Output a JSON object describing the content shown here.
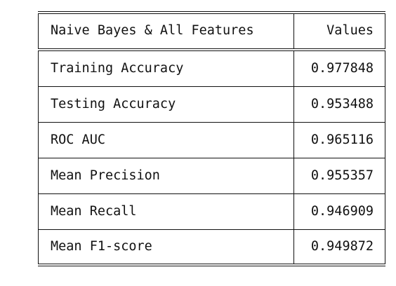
{
  "table": {
    "header": {
      "label": "Naive Bayes & All Features",
      "value": "Values"
    },
    "rows": [
      {
        "label": "Training Accuracy",
        "value": "0.977848"
      },
      {
        "label": "Testing Accuracy",
        "value": "0.953488"
      },
      {
        "label": "ROC AUC",
        "value": "0.965116"
      },
      {
        "label": "Mean Precision",
        "value": "0.955357"
      },
      {
        "label": "Mean Recall",
        "value": "0.946909"
      },
      {
        "label": "Mean F1-score",
        "value": "0.949872"
      }
    ]
  }
}
